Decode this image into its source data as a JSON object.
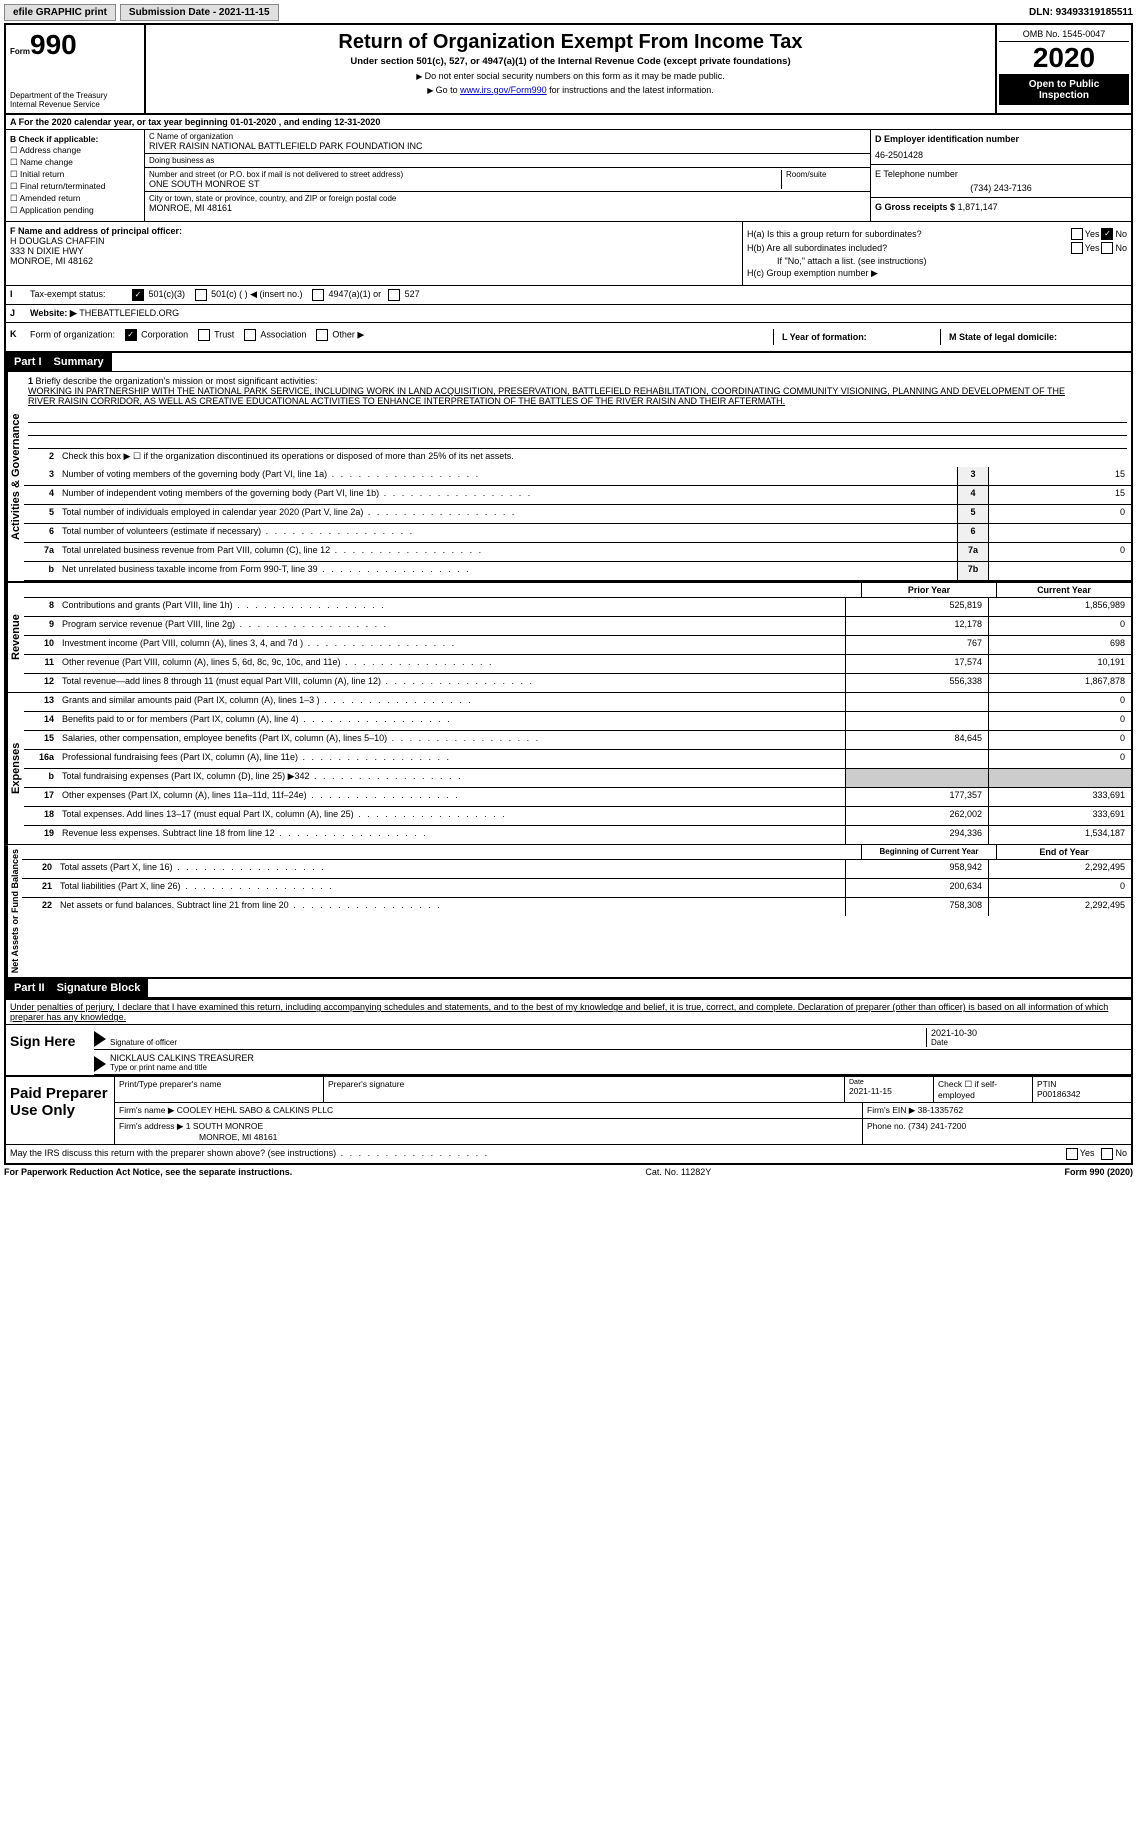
{
  "top": {
    "efile_label": "efile GRAPHIC print",
    "submission_label": "Submission Date - 2021-11-15",
    "dln": "DLN: 93493319185511"
  },
  "header": {
    "form_label": "Form",
    "form_num": "990",
    "dept": "Department of the Treasury\nInternal Revenue Service",
    "title": "Return of Organization Exempt From Income Tax",
    "subtitle": "Under section 501(c), 527, or 4947(a)(1) of the Internal Revenue Code (except private foundations)",
    "note1": "Do not enter social security numbers on this form as it may be made public.",
    "note2_pre": "Go to ",
    "note2_link": "www.irs.gov/Form990",
    "note2_post": " for instructions and the latest information.",
    "omb": "OMB No. 1545-0047",
    "year": "2020",
    "open": "Open to Public Inspection"
  },
  "row_a": "A For the 2020 calendar year, or tax year beginning 01-01-2020    , and ending 12-31-2020",
  "box_b": {
    "title": "B Check if applicable:",
    "items": [
      "Address change",
      "Name change",
      "Initial return",
      "Final return/terminated",
      "Amended return",
      "Application pending"
    ]
  },
  "box_c": {
    "name_label": "C Name of organization",
    "name": "RIVER RAISIN NATIONAL BATTLEFIELD PARK FOUNDATION INC",
    "dba_label": "Doing business as",
    "street_label": "Number and street (or P.O. box if mail is not delivered to street address)",
    "room_label": "Room/suite",
    "street": "ONE SOUTH MONROE ST",
    "city_label": "City or town, state or province, country, and ZIP or foreign postal code",
    "city": "MONROE, MI  48161"
  },
  "box_d": {
    "ein_label": "D Employer identification number",
    "ein": "46-2501428",
    "phone_label": "E Telephone number",
    "phone": "(734) 243-7136",
    "gross_label": "G Gross receipts $",
    "gross": "1,871,147"
  },
  "box_f": {
    "label": "F Name and address of principal officer:",
    "name": "H DOUGLAS CHAFFIN",
    "addr1": "333 N DIXIE HWY",
    "addr2": "MONROE, MI  48162"
  },
  "box_h": {
    "ha_label": "H(a)  Is this a group return for subordinates?",
    "hb_label": "H(b)  Are all subordinates included?",
    "hb_note": "If \"No,\" attach a list. (see instructions)",
    "hc_label": "H(c)  Group exemption number ▶"
  },
  "row_i": {
    "label": "I",
    "text": "Tax-exempt status:",
    "opts": [
      "501(c)(3)",
      "501(c) (   ) ◀ (insert no.)",
      "4947(a)(1) or",
      "527"
    ]
  },
  "row_j": {
    "label": "J",
    "text": "Website: ▶",
    "val": "THEBATTLEFIELD.ORG"
  },
  "row_k": {
    "label": "K",
    "text": "Form of organization:",
    "opts": [
      "Corporation",
      "Trust",
      "Association",
      "Other ▶"
    ],
    "l": "L Year of formation:",
    "m": "M State of legal domicile:"
  },
  "part1": {
    "hdr": "Part I",
    "title": "Summary",
    "side_ag": "Activities & Governance",
    "side_rev": "Revenue",
    "side_exp": "Expenses",
    "side_net": "Net Assets or Fund Balances",
    "line1_label": "1",
    "line1": "Briefly describe the organization's mission or most significant activities:",
    "mission": "WORKING IN PARTNERSHIP WITH THE NATIONAL PARK SERVICE, INCLUDING WORK IN LAND ACQUISITION, PRESERVATION, BATTLEFIELD REHABILITATION, COORDINATING COMMUNITY VISIONING, PLANNING AND DEVELOPMENT OF THE RIVER RAISIN CORRIDOR, AS WELL AS CREATIVE EDUCATIONAL ACTIVITIES TO ENHANCE INTERPRETATION OF THE BATTLES OF THE RIVER RAISIN AND THEIR AFTERMATH.",
    "line2": "Check this box ▶ ☐ if the organization discontinued its operations or disposed of more than 25% of its net assets.",
    "lines_ag": [
      {
        "n": "3",
        "t": "Number of voting members of the governing body (Part VI, line 1a)",
        "b": "3",
        "v": "15"
      },
      {
        "n": "4",
        "t": "Number of independent voting members of the governing body (Part VI, line 1b)",
        "b": "4",
        "v": "15"
      },
      {
        "n": "5",
        "t": "Total number of individuals employed in calendar year 2020 (Part V, line 2a)",
        "b": "5",
        "v": "0"
      },
      {
        "n": "6",
        "t": "Total number of volunteers (estimate if necessary)",
        "b": "6",
        "v": ""
      },
      {
        "n": "7a",
        "t": "Total unrelated business revenue from Part VIII, column (C), line 12",
        "b": "7a",
        "v": "0"
      },
      {
        "n": "b",
        "t": "Net unrelated business taxable income from Form 990-T, line 39",
        "b": "7b",
        "v": ""
      }
    ],
    "col_prior": "Prior Year",
    "col_current": "Current Year",
    "lines_rev": [
      {
        "n": "8",
        "t": "Contributions and grants (Part VIII, line 1h)",
        "p": "525,819",
        "c": "1,856,989"
      },
      {
        "n": "9",
        "t": "Program service revenue (Part VIII, line 2g)",
        "p": "12,178",
        "c": "0"
      },
      {
        "n": "10",
        "t": "Investment income (Part VIII, column (A), lines 3, 4, and 7d )",
        "p": "767",
        "c": "698"
      },
      {
        "n": "11",
        "t": "Other revenue (Part VIII, column (A), lines 5, 6d, 8c, 9c, 10c, and 11e)",
        "p": "17,574",
        "c": "10,191"
      },
      {
        "n": "12",
        "t": "Total revenue—add lines 8 through 11 (must equal Part VIII, column (A), line 12)",
        "p": "556,338",
        "c": "1,867,878"
      }
    ],
    "lines_exp": [
      {
        "n": "13",
        "t": "Grants and similar amounts paid (Part IX, column (A), lines 1–3 )",
        "p": "",
        "c": "0"
      },
      {
        "n": "14",
        "t": "Benefits paid to or for members (Part IX, column (A), line 4)",
        "p": "",
        "c": "0"
      },
      {
        "n": "15",
        "t": "Salaries, other compensation, employee benefits (Part IX, column (A), lines 5–10)",
        "p": "84,645",
        "c": "0"
      },
      {
        "n": "16a",
        "t": "Professional fundraising fees (Part IX, column (A), line 11e)",
        "p": "",
        "c": "0"
      },
      {
        "n": "b",
        "t": "Total fundraising expenses (Part IX, column (D), line 25) ▶342",
        "p": "shade",
        "c": "shade"
      },
      {
        "n": "17",
        "t": "Other expenses (Part IX, column (A), lines 11a–11d, 11f–24e)",
        "p": "177,357",
        "c": "333,691"
      },
      {
        "n": "18",
        "t": "Total expenses. Add lines 13–17 (must equal Part IX, column (A), line 25)",
        "p": "262,002",
        "c": "333,691"
      },
      {
        "n": "19",
        "t": "Revenue less expenses. Subtract line 18 from line 12",
        "p": "294,336",
        "c": "1,534,187"
      }
    ],
    "col_begin": "Beginning of Current Year",
    "col_end": "End of Year",
    "lines_net": [
      {
        "n": "20",
        "t": "Total assets (Part X, line 16)",
        "p": "958,942",
        "c": "2,292,495"
      },
      {
        "n": "21",
        "t": "Total liabilities (Part X, line 26)",
        "p": "200,634",
        "c": "0"
      },
      {
        "n": "22",
        "t": "Net assets or fund balances. Subtract line 21 from line 20",
        "p": "758,308",
        "c": "2,292,495"
      }
    ]
  },
  "part2": {
    "hdr": "Part II",
    "title": "Signature Block",
    "penalty": "Under penalties of perjury, I declare that I have examined this return, including accompanying schedules and statements, and to the best of my knowledge and belief, it is true, correct, and complete. Declaration of preparer (other than officer) is based on all information of which preparer has any knowledge.",
    "sign_here": "Sign Here",
    "sig_officer": "Signature of officer",
    "date_label": "Date",
    "date": "2021-10-30",
    "officer_name": "NICKLAUS CALKINS TREASURER",
    "type_name": "Type or print name and title",
    "paid": "Paid Preparer Use Only",
    "prep_name_label": "Print/Type preparer's name",
    "prep_sig_label": "Preparer's signature",
    "prep_date": "2021-11-15",
    "check_self": "Check ☐ if self-employed",
    "ptin_label": "PTIN",
    "ptin": "P00186342",
    "firm_name_label": "Firm's name   ▶",
    "firm_name": "COOLEY HEHL SABO & CALKINS PLLC",
    "firm_ein_label": "Firm's EIN ▶",
    "firm_ein": "38-1335762",
    "firm_addr_label": "Firm's address ▶",
    "firm_addr": "1 SOUTH MONROE",
    "firm_city": "MONROE, MI  48161",
    "firm_phone_label": "Phone no.",
    "firm_phone": "(734) 241-7200",
    "may_irs": "May the IRS discuss this return with the preparer shown above? (see instructions)"
  },
  "footer": {
    "left": "For Paperwork Reduction Act Notice, see the separate instructions.",
    "mid": "Cat. No. 11282Y",
    "right": "Form 990 (2020)"
  }
}
